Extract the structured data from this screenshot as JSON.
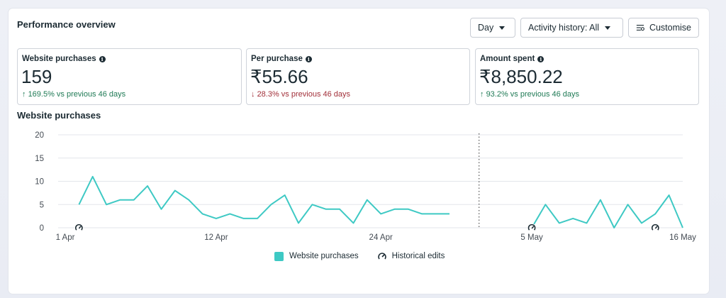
{
  "header": {
    "title": "Performance overview",
    "day_label": "Day",
    "history_label": "Activity history: All",
    "customise_label": "Customise"
  },
  "metrics": [
    {
      "label": "Website purchases",
      "value": "159",
      "change": "169.5% vs previous 46 days",
      "direction": "up"
    },
    {
      "label": "Per purchase",
      "value": "₹55.66",
      "change": "28.3% vs previous 46 days",
      "direction": "down"
    },
    {
      "label": "Amount spent",
      "value": "₹8,850.22",
      "change": "93.2% vs previous 46 days",
      "direction": "up"
    }
  ],
  "icons": {
    "info": "info-icon",
    "up_arrow": "arrow-up-icon",
    "down_arrow": "arrow-down-icon",
    "customise": "sliders-icon",
    "historical_edit": "gauge-icon"
  },
  "colors": {
    "series": "#3ec9c4",
    "up": "#1f7a55",
    "down": "#a2303a"
  },
  "chart_data": {
    "type": "line",
    "title": "Website purchases",
    "ylim": [
      0,
      20
    ],
    "y_ticks": [
      "0",
      "5",
      "10",
      "15",
      "20"
    ],
    "x_ticks": [
      {
        "label": "1 Apr",
        "index": 0
      },
      {
        "label": "12 Apr",
        "index": 11
      },
      {
        "label": "24 Apr",
        "index": 23
      },
      {
        "label": "5 May",
        "index": 34
      },
      {
        "label": "16 May",
        "index": 45
      }
    ],
    "divider_index": 30,
    "series": [
      {
        "name": "Website purchases",
        "segments": [
          {
            "start_index": 1,
            "values": [
              5,
              11,
              5,
              6,
              6,
              9,
              4,
              8,
              6,
              3,
              2,
              3,
              2,
              2,
              5,
              7,
              1,
              5,
              4,
              4,
              1,
              6,
              3,
              4,
              4,
              3,
              3,
              3
            ]
          },
          {
            "start_index": 34,
            "values": [
              0,
              5,
              1,
              2,
              1,
              6,
              0,
              5,
              1,
              3,
              7,
              0
            ]
          }
        ]
      }
    ],
    "historical_edits_indices": [
      1,
      34,
      43
    ],
    "legend": [
      "Website purchases",
      "Historical edits"
    ],
    "grid": true
  }
}
